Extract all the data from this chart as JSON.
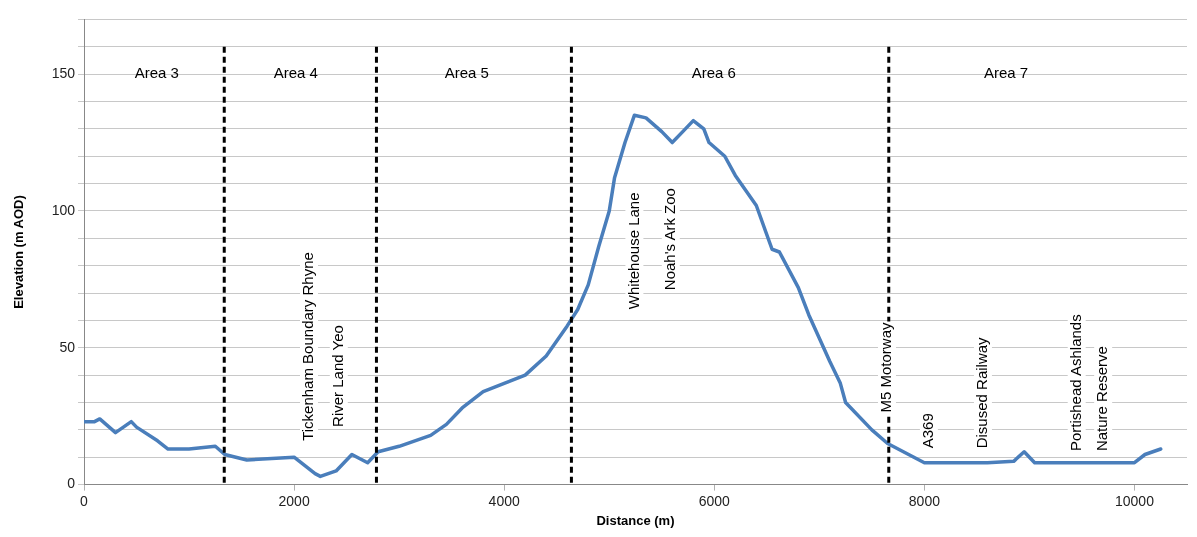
{
  "chart_data": {
    "type": "line",
    "xlabel": "Distance (m)",
    "ylabel": "Elevation (m AOD)",
    "xlim": [
      0,
      10500
    ],
    "xticks": [
      0,
      2000,
      4000,
      6000,
      8000,
      10000
    ],
    "ylim": [
      0,
      170
    ],
    "yticks": [
      0,
      {
        "value": 10,
        "label": null
      },
      {
        "value": 20,
        "label": null
      },
      {
        "value": 30,
        "label": null
      },
      {
        "value": 40,
        "label": null
      },
      50,
      {
        "value": 60,
        "label": null
      },
      {
        "value": 70,
        "label": null
      },
      {
        "value": 80,
        "label": null
      },
      {
        "value": 90,
        "label": null
      },
      100,
      {
        "value": 110,
        "label": null
      },
      {
        "value": 120,
        "label": null
      },
      {
        "value": 130,
        "label": null
      },
      {
        "value": 140,
        "label": null
      },
      150,
      {
        "value": 160,
        "label": null
      },
      {
        "value": 170,
        "label": null
      }
    ],
    "grid": "y",
    "legend": false,
    "marker": "none",
    "line_style": "solid",
    "series": [
      {
        "color": "#4a7ebb",
        "x": [
          0,
          100,
          150,
          300,
          450,
          500,
          700,
          800,
          1000,
          1250,
          1340,
          1550,
          2000,
          2200,
          2250,
          2400,
          2550,
          2700,
          2800,
          3000,
          3300,
          3450,
          3600,
          3800,
          4000,
          4200,
          4400,
          4600,
          4700,
          4800,
          4900,
          5000,
          5050,
          5150,
          5240,
          5350,
          5500,
          5600,
          5700,
          5800,
          5900,
          5950,
          6100,
          6200,
          6400,
          6550,
          6620,
          6800,
          6900,
          7100,
          7200,
          7250,
          7500,
          7650,
          7950,
          8000,
          8600,
          8850,
          8950,
          9050,
          10000,
          10100,
          10250
        ],
        "values": [
          23,
          23,
          24,
          19,
          23,
          21,
          16,
          13,
          13,
          14,
          11,
          9,
          10,
          4,
          3,
          5,
          11,
          8,
          12,
          14,
          18,
          22,
          28,
          34,
          37,
          40,
          47,
          58,
          64,
          73,
          87,
          100,
          112,
          125,
          135,
          134,
          129,
          125,
          129,
          133,
          130,
          125,
          120,
          113,
          102,
          86,
          85,
          72,
          62,
          45,
          37,
          30,
          20,
          15,
          9,
          8,
          8,
          8.5,
          12,
          8,
          8,
          11,
          13
        ]
      }
    ],
    "ref_lines": [
      {
        "axis": "x",
        "value": 1335,
        "color": "#000000",
        "line_style": "dashed"
      },
      {
        "axis": "x",
        "value": 2784,
        "color": "#000000",
        "line_style": "dashed"
      },
      {
        "axis": "x",
        "value": 4640,
        "color": "#000000",
        "line_style": "dashed"
      },
      {
        "axis": "x",
        "value": 7661,
        "color": "#000000",
        "line_style": "dashed"
      }
    ],
    "annotations": [
      "Area 3",
      "Area 4",
      "Area 5",
      "Area 6",
      "Area 7",
      "Tickenham Boundary Rhyne",
      "River Land Yeo",
      "Whitehouse Lane",
      "Noah's Ark Zoo",
      "M5 Motorway",
      "A369",
      "Disused Railway",
      "Portishead Ashlands",
      "Nature Reserve"
    ]
  }
}
